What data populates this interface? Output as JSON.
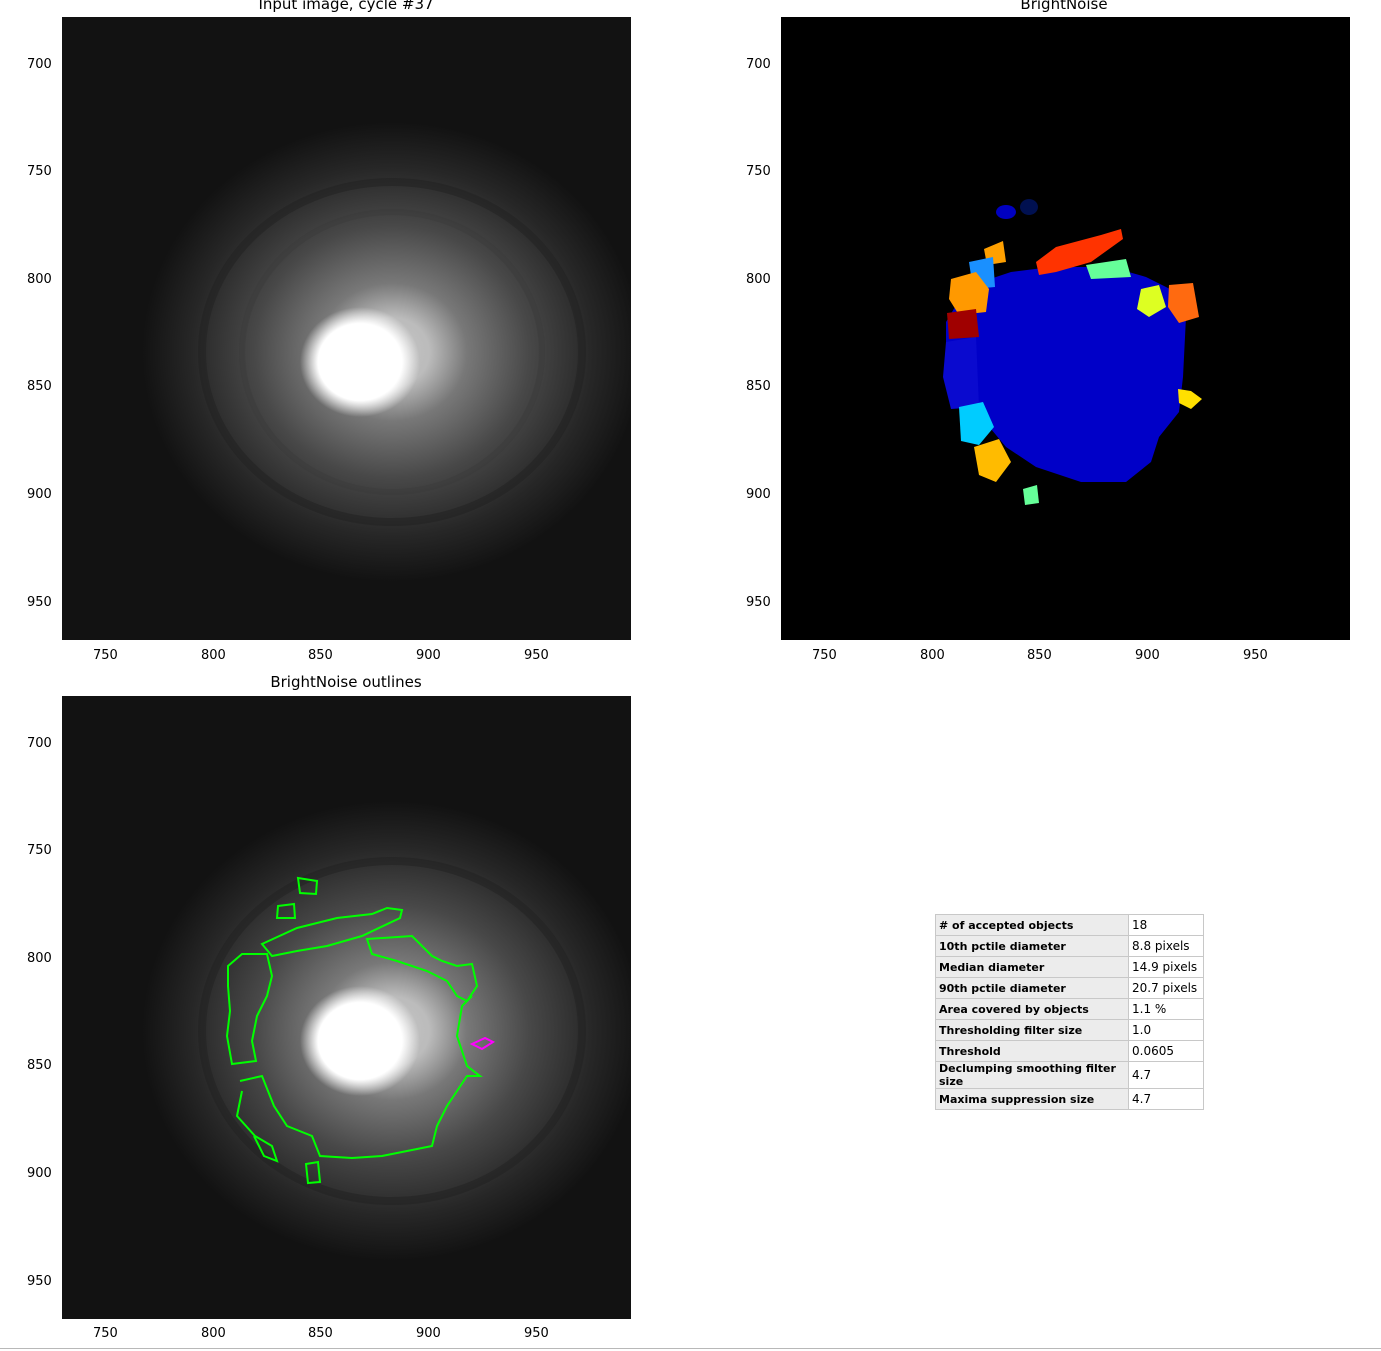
{
  "panels": {
    "input": {
      "title": "Input image, cycle #37"
    },
    "labels": {
      "title": "BrightNoise"
    },
    "outlines": {
      "title": "BrightNoise outlines"
    }
  },
  "axes": {
    "x_ticks": [
      "750",
      "800",
      "850",
      "900",
      "950"
    ],
    "y_ticks": [
      "700",
      "750",
      "800",
      "850",
      "900",
      "950"
    ]
  },
  "stats_table": [
    {
      "label": "# of accepted objects",
      "value": "18"
    },
    {
      "label": "10th pctile diameter",
      "value": "8.8 pixels"
    },
    {
      "label": "Median diameter",
      "value": "14.9 pixels"
    },
    {
      "label": "90th pctile diameter",
      "value": "20.7 pixels"
    },
    {
      "label": "Area covered by objects",
      "value": "1.1 %"
    },
    {
      "label": "Thresholding filter size",
      "value": "1.0"
    },
    {
      "label": "Threshold",
      "value": "0.0605"
    },
    {
      "label": "Declumping smoothing filter size",
      "value": "4.7"
    },
    {
      "label": "Maxima suppression size",
      "value": "4.7"
    }
  ],
  "colors": {
    "outline": "#00ff00",
    "outline_rejected": "#ff00ff",
    "main_object": "#0000c8"
  }
}
